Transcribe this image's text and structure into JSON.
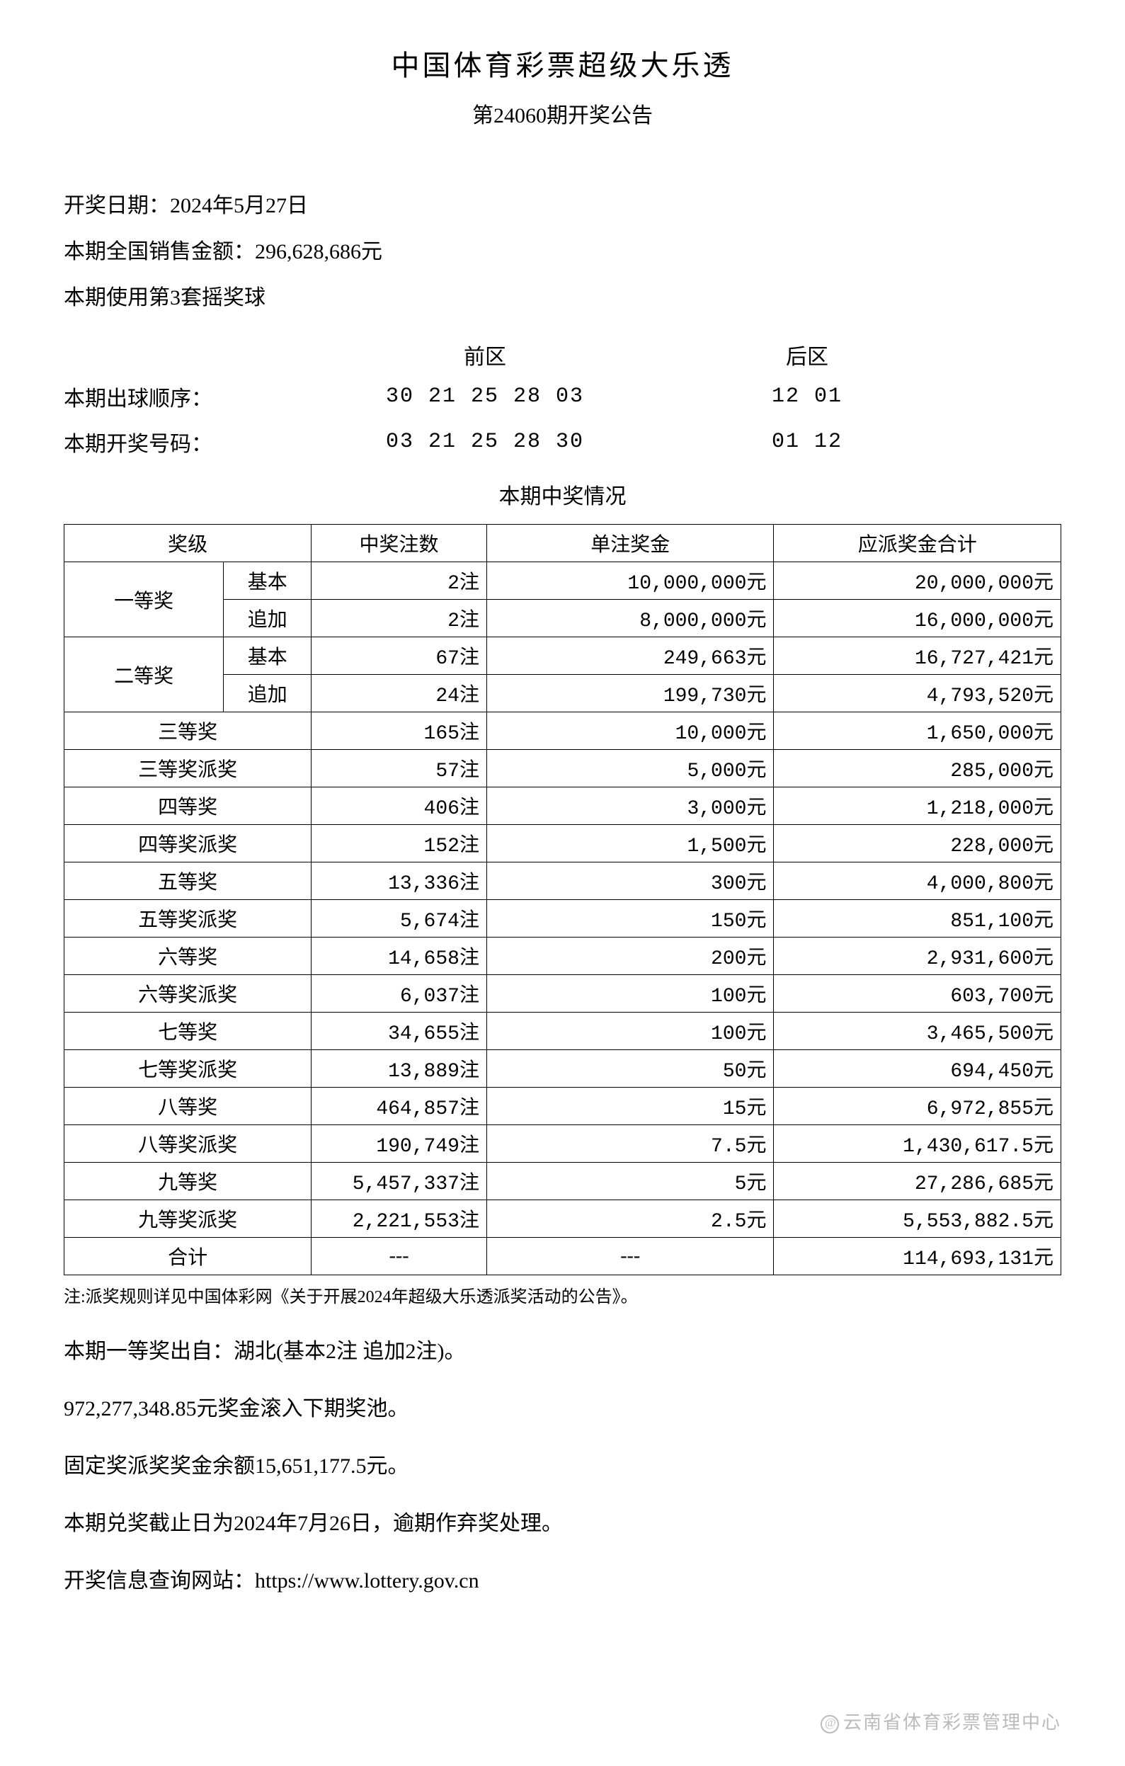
{
  "header": {
    "title": "中国体育彩票超级大乐透",
    "subtitle": "第24060期开奖公告"
  },
  "info": {
    "date": "开奖日期：2024年5月27日",
    "sales": "本期全国销售金额：296,628,686元",
    "ballset": "本期使用第3套摇奖球"
  },
  "zones": {
    "front_label": "前区",
    "back_label": "后区",
    "draw_order_label": "本期出球顺序：",
    "draw_order_front": "30 21 25 28 03",
    "draw_order_back": "12 01",
    "winning_label": "本期开奖号码：",
    "winning_front": "03 21 25 28 30",
    "winning_back": "01 12"
  },
  "prize_section_title": "本期中奖情况",
  "table": {
    "headers": {
      "level": "奖级",
      "count": "中奖注数",
      "unit_prize": "单注奖金",
      "total": "应派奖金合计"
    },
    "first": {
      "label": "一等奖",
      "basic_label": "基本",
      "basic_count": "2注",
      "basic_prize": "10,000,000元",
      "basic_total": "20,000,000元",
      "add_label": "追加",
      "add_count": "2注",
      "add_prize": "8,000,000元",
      "add_total": "16,000,000元"
    },
    "second": {
      "label": "二等奖",
      "basic_label": "基本",
      "basic_count": "67注",
      "basic_prize": "249,663元",
      "basic_total": "16,727,421元",
      "add_label": "追加",
      "add_count": "24注",
      "add_prize": "199,730元",
      "add_total": "4,793,520元"
    },
    "rows": [
      {
        "level": "三等奖",
        "count": "165注",
        "prize": "10,000元",
        "total": "1,650,000元"
      },
      {
        "level": "三等奖派奖",
        "count": "57注",
        "prize": "5,000元",
        "total": "285,000元"
      },
      {
        "level": "四等奖",
        "count": "406注",
        "prize": "3,000元",
        "total": "1,218,000元"
      },
      {
        "level": "四等奖派奖",
        "count": "152注",
        "prize": "1,500元",
        "total": "228,000元"
      },
      {
        "level": "五等奖",
        "count": "13,336注",
        "prize": "300元",
        "total": "4,000,800元"
      },
      {
        "level": "五等奖派奖",
        "count": "5,674注",
        "prize": "150元",
        "total": "851,100元"
      },
      {
        "level": "六等奖",
        "count": "14,658注",
        "prize": "200元",
        "total": "2,931,600元"
      },
      {
        "level": "六等奖派奖",
        "count": "6,037注",
        "prize": "100元",
        "total": "603,700元"
      },
      {
        "level": "七等奖",
        "count": "34,655注",
        "prize": "100元",
        "total": "3,465,500元"
      },
      {
        "level": "七等奖派奖",
        "count": "13,889注",
        "prize": "50元",
        "total": "694,450元"
      },
      {
        "level": "八等奖",
        "count": "464,857注",
        "prize": "15元",
        "total": "6,972,855元"
      },
      {
        "level": "八等奖派奖",
        "count": "190,749注",
        "prize": "7.5元",
        "total": "1,430,617.5元"
      },
      {
        "level": "九等奖",
        "count": "5,457,337注",
        "prize": "5元",
        "total": "27,286,685元"
      },
      {
        "level": "九等奖派奖",
        "count": "2,221,553注",
        "prize": "2.5元",
        "total": "5,553,882.5元"
      }
    ],
    "sum": {
      "label": "合计",
      "count": "---",
      "prize": "---",
      "total": "114,693,131元"
    }
  },
  "note": "注:派奖规则详见中国体彩网《关于开展2024年超级大乐透派奖活动的公告》。",
  "footer": {
    "winner_origin": "本期一等奖出自：湖北(基本2注 追加2注)。",
    "rollover": "972,277,348.85元奖金滚入下期奖池。",
    "fixed_balance": "固定奖派奖奖金余额15,651,177.5元。",
    "deadline": "本期兑奖截止日为2024年7月26日，逾期作弃奖处理。",
    "website": "开奖信息查询网站：https://www.lottery.gov.cn"
  },
  "watermark": "云南省体育彩票管理中心"
}
